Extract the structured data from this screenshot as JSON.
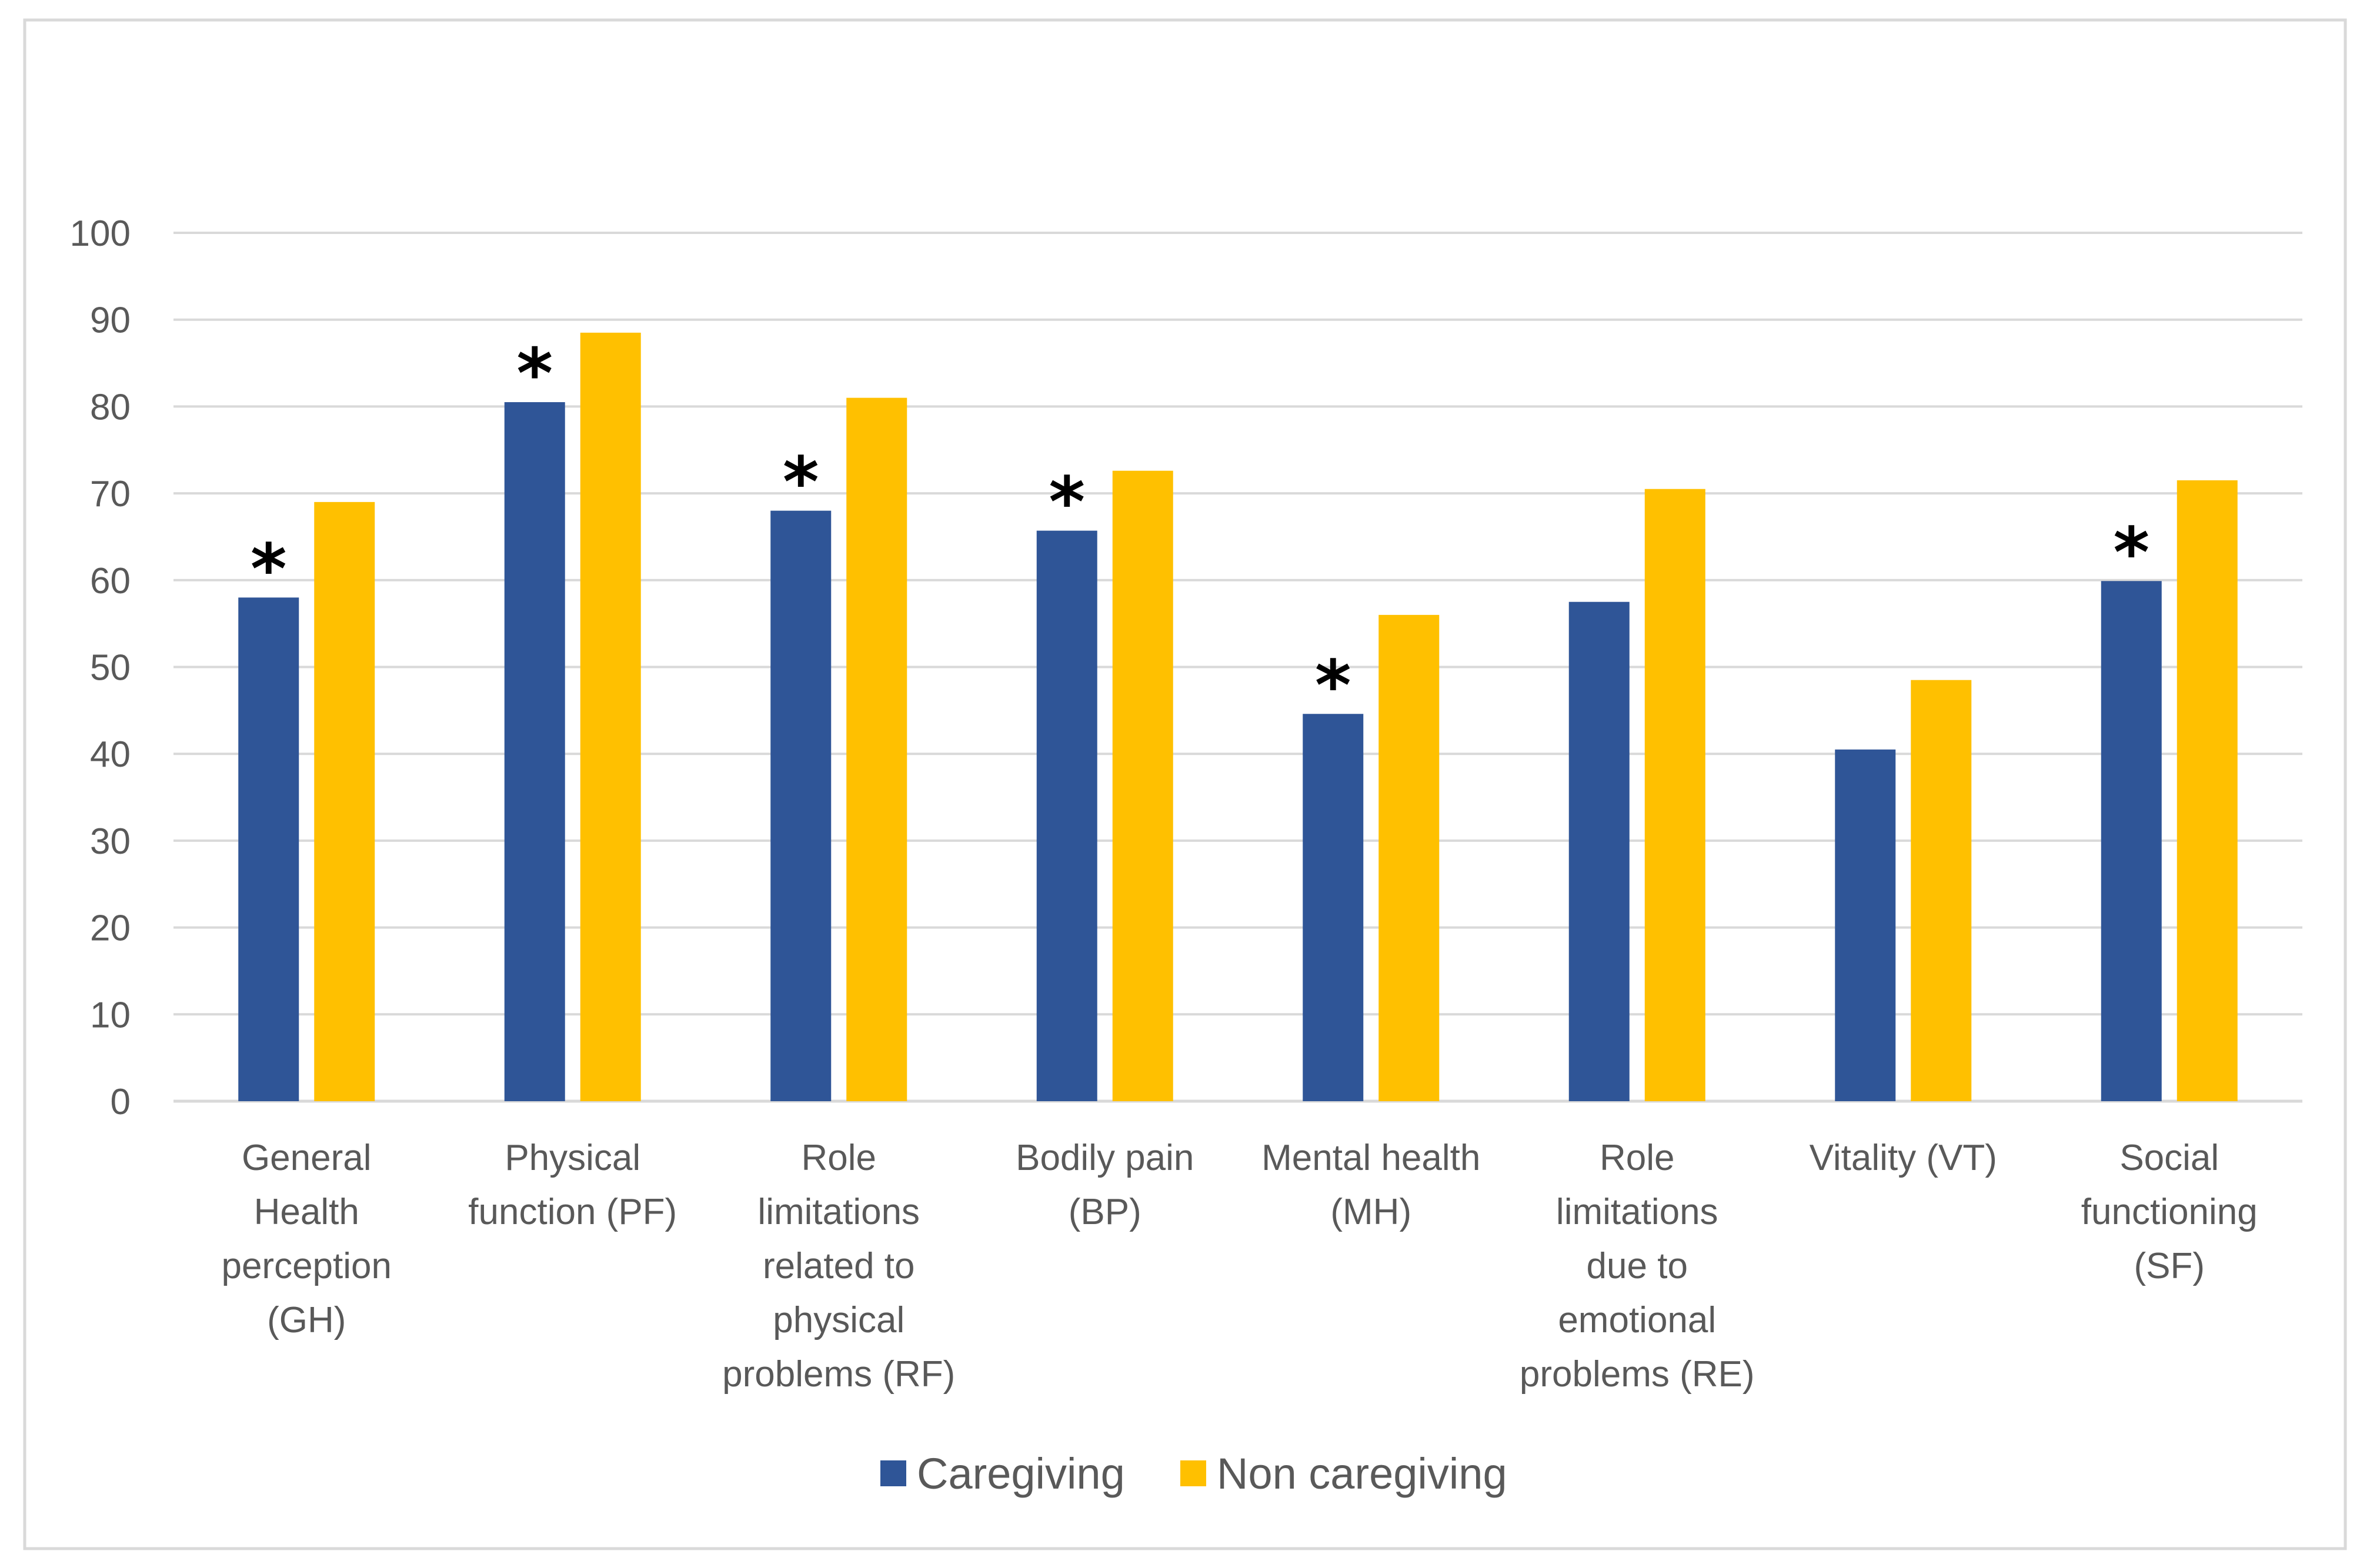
{
  "chart_data": {
    "type": "bar",
    "title": "",
    "xlabel": "",
    "ylabel": "",
    "ylim": [
      0,
      100
    ],
    "yticks": [
      0,
      10,
      20,
      30,
      40,
      50,
      60,
      70,
      80,
      90,
      100
    ],
    "grid": true,
    "legend_position": "bottom",
    "categories": [
      "General Health perception (GH)",
      "Physical function (PF)",
      "Role limitations related to physical problems (RF)",
      "Bodily pain (BP)",
      "Mental health (MH)",
      "Role limitations due to emotional problems (RE)",
      "Vitality (VT)",
      "Social functioning (SF)"
    ],
    "category_label_lines": [
      [
        "General",
        "Health",
        "perception",
        "(GH)"
      ],
      [
        "Physical",
        "function (PF)"
      ],
      [
        "Role",
        "limitations",
        "related to",
        "physical",
        "problems (RF)"
      ],
      [
        "Bodily pain",
        "(BP)"
      ],
      [
        "Mental health",
        "(MH)"
      ],
      [
        "Role",
        "limitations",
        "due to",
        "emotional",
        "problems (RE)"
      ],
      [
        "Vitality (VT)"
      ],
      [
        "Social",
        "functioning",
        "(SF)"
      ]
    ],
    "series": [
      {
        "name": "Caregiving",
        "color": "#2F5597",
        "values": [
          58,
          80.5,
          68,
          65.7,
          44.6,
          57.5,
          40.5,
          59.9
        ]
      },
      {
        "name": "Non caregiving",
        "color": "#FFC000",
        "values": [
          69,
          88.5,
          81,
          72.6,
          56,
          70.5,
          48.5,
          71.5
        ]
      }
    ],
    "significance_marker": "*",
    "significant": [
      true,
      true,
      true,
      true,
      true,
      false,
      false,
      true
    ]
  }
}
